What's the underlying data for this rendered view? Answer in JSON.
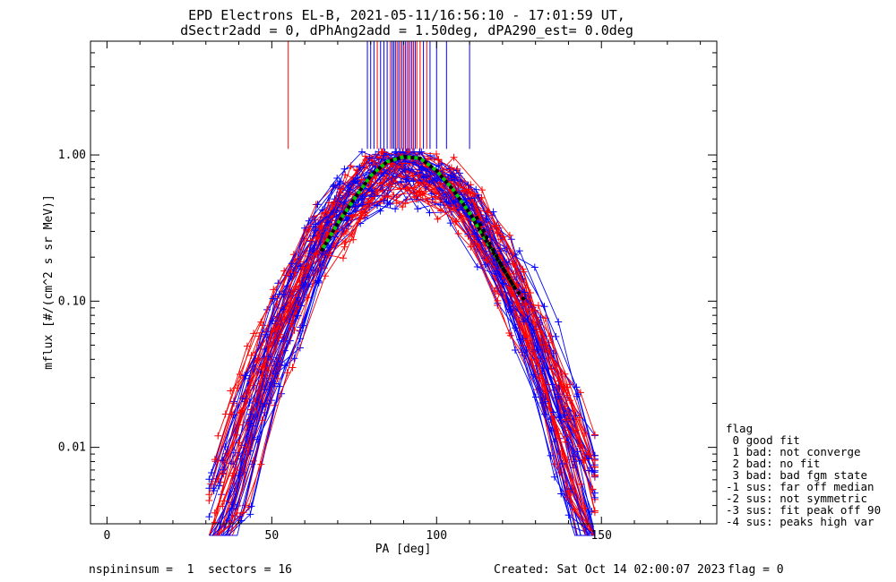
{
  "title": {
    "line1": "EPD Electrons EL-B, 2021-05-11/16:56:10 - 17:01:59 UT,",
    "line2": "dSectr2add = 0, dPhAng2add = 1.50deg, dPA290_est=    0.0deg"
  },
  "footer": {
    "left": "nspininsum =  1  sectors = 16",
    "created": "Created: Sat Oct 14 02:00:07 2023",
    "flag": "flag = 0"
  },
  "legend": {
    "title": "flag",
    "items": [
      " 0 good fit",
      " 1 bad: not converge",
      " 2 bad: no fit",
      " 3 bad: bad fgm state",
      "-1 sus: far off median",
      "-2 sus: not symmetric",
      "-3 sus: fit peak off 90",
      "-4 sus: peaks high var"
    ]
  },
  "colors": {
    "series_a": "#0000ff",
    "series_b": "#ff0000",
    "fit_median": "#00cc00",
    "fit_alt": "#000000"
  },
  "chart_data": {
    "type": "scatter",
    "xlabel": "PA [deg]",
    "ylabel": "mflux [#/(cm^2 s sr MeV)]",
    "xlim": [
      -5,
      185
    ],
    "ylim": [
      0.003,
      6
    ],
    "yscale": "log",
    "xticks": [
      0,
      50,
      100,
      150
    ],
    "xtick_labels": [
      "0",
      "50",
      "100",
      "150"
    ],
    "yticks": [
      0.01,
      0.1,
      1.0
    ],
    "ytick_labels": [
      "0.01",
      "0.10",
      "1.00"
    ],
    "grid": false,
    "legend_position": "right",
    "representative_profile": {
      "x": [
        32,
        40,
        50,
        60,
        70,
        80,
        85,
        90,
        95,
        100,
        110,
        120,
        130,
        140,
        147
      ],
      "y": [
        0.004,
        0.008,
        0.022,
        0.08,
        0.3,
        0.8,
        0.92,
        0.95,
        0.9,
        0.72,
        0.3,
        0.1,
        0.03,
        0.01,
        0.006
      ]
    },
    "fit_curves": [
      {
        "x": [
          65,
          70,
          75,
          80,
          85,
          90,
          95,
          100,
          105,
          110,
          115,
          120,
          124
        ],
        "y": [
          0.22,
          0.34,
          0.5,
          0.72,
          0.9,
          0.97,
          0.95,
          0.78,
          0.58,
          0.4,
          0.26,
          0.17,
          0.12
        ]
      },
      {
        "x": [
          112,
          116,
          120,
          124,
          127
        ],
        "y": [
          0.38,
          0.25,
          0.17,
          0.12,
          0.1
        ]
      }
    ],
    "vertical_markers": {
      "y_top": 6.0,
      "y_bottom": 1.1,
      "red_x": [
        55,
        82,
        86,
        88,
        89,
        90,
        91,
        92,
        93,
        94,
        95,
        97
      ],
      "blue_x": [
        79,
        80,
        81,
        83,
        84,
        85,
        86.5,
        87,
        87.5,
        88.5,
        89.5,
        90.5,
        91.5,
        92.5,
        93.5,
        96,
        98,
        100,
        103,
        110
      ]
    }
  }
}
